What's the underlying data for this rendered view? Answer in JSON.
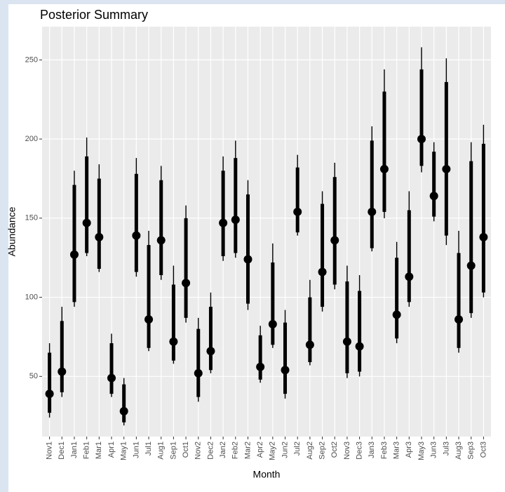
{
  "chart_data": {
    "type": "interval",
    "title": "Posterior Summary",
    "x_label": "Month",
    "y_label": "Abundance",
    "categories": [
      "Nov1",
      "Dec1",
      "Jan1",
      "Feb1",
      "Mar1",
      "Apr1",
      "May1",
      "Jun1",
      "Jul1",
      "Aug1",
      "Sep1",
      "Oct1",
      "Nov2",
      "Dec2",
      "Jan2",
      "Feb2",
      "Mar2",
      "Apr2",
      "May2",
      "Jun2",
      "Jul2",
      "Aug2",
      "Sep2",
      "Oct2",
      "Nov3",
      "Dec3",
      "Jan3",
      "Feb3",
      "Mar3",
      "Apr3",
      "May3",
      "Jun3",
      "Jul3",
      "Aug3",
      "Sep3",
      "Oct3"
    ],
    "values": [
      39,
      53,
      127,
      147,
      138,
      49,
      28,
      139,
      86,
      136,
      72,
      109,
      52,
      66,
      147,
      149,
      124,
      56,
      83,
      54,
      154,
      70,
      116,
      136,
      72,
      69,
      154,
      181,
      89,
      113,
      200,
      164,
      181,
      86,
      120,
      138
    ],
    "inner_low": [
      27,
      40,
      97,
      128,
      118,
      39,
      21,
      116,
      68,
      114,
      60,
      87,
      37,
      54,
      126,
      128,
      96,
      48,
      70,
      39,
      141,
      59,
      94,
      108,
      52,
      53,
      131,
      154,
      74,
      97,
      183,
      151,
      139,
      68,
      90,
      103
    ],
    "inner_high": [
      65,
      85,
      171,
      189,
      175,
      71,
      45,
      178,
      133,
      174,
      108,
      150,
      80,
      94,
      180,
      188,
      165,
      76,
      122,
      84,
      182,
      100,
      159,
      176,
      110,
      104,
      199,
      230,
      125,
      155,
      244,
      192,
      236,
      128,
      186,
      197
    ],
    "outer_low": [
      24,
      37,
      94,
      126,
      116,
      37,
      19,
      113,
      66,
      111,
      58,
      84,
      34,
      52,
      123,
      125,
      92,
      46,
      68,
      36,
      139,
      57,
      91,
      105,
      49,
      50,
      129,
      150,
      71,
      94,
      179,
      148,
      133,
      65,
      87,
      100
    ],
    "outer_high": [
      71,
      94,
      180,
      201,
      184,
      77,
      49,
      188,
      142,
      183,
      120,
      158,
      87,
      103,
      189,
      199,
      174,
      82,
      134,
      92,
      190,
      111,
      167,
      185,
      120,
      114,
      208,
      244,
      135,
      167,
      258,
      198,
      251,
      142,
      198,
      209
    ],
    "color": "#000000",
    "ylim": [
      12,
      271
    ],
    "yticks": [
      50,
      100,
      150,
      200,
      250
    ],
    "grid": true
  }
}
